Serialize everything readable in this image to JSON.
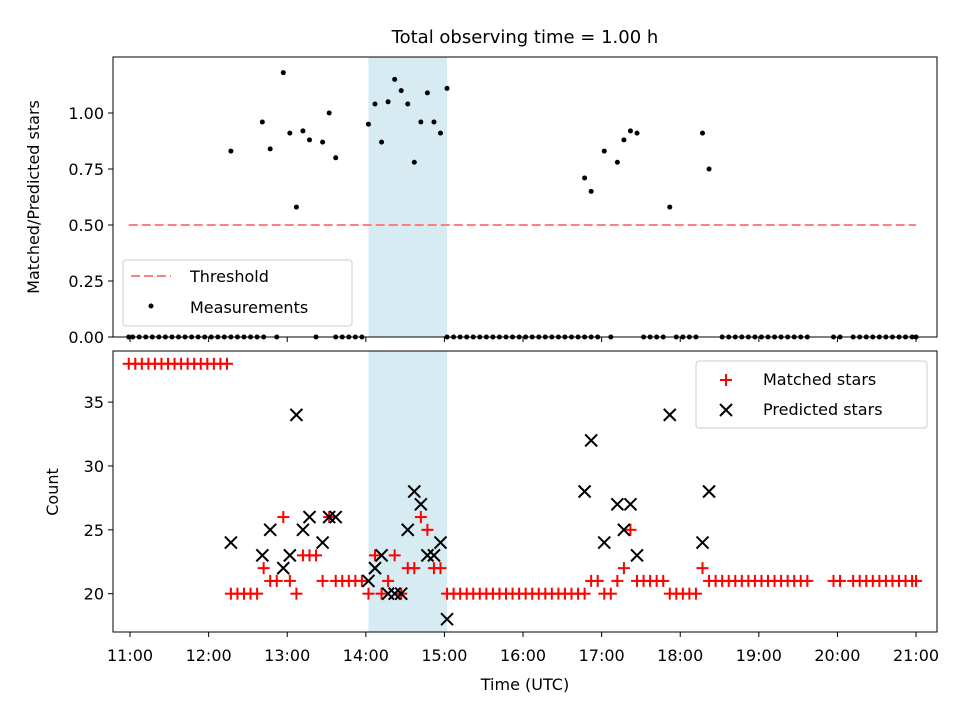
{
  "figure": {
    "title": "Total observing time = 1.00 h"
  },
  "chart_data": [
    {
      "type": "scatter",
      "panel": "top",
      "ylabel": "Matched/Predicted stars",
      "ylim": [
        0.0,
        1.25
      ],
      "xlim": [
        "10:47",
        "21:16"
      ],
      "yticks": [
        0.0,
        0.25,
        0.5,
        0.75,
        1.0
      ],
      "ytick_labels": [
        "0.00",
        "0.25",
        "0.50",
        "0.75",
        "1.00"
      ],
      "highlight": {
        "start": "14:02",
        "end": "15:02",
        "color": "#add8e6"
      },
      "legend_position": "lower-left",
      "threshold": {
        "name": "Threshold",
        "value": 0.5,
        "from": "10:59",
        "to": "21:00",
        "color": "#ff7f7f"
      },
      "series": [
        {
          "name": "Measurements",
          "color": "#000000",
          "points": [
            [
              "12:17",
              0.83
            ],
            [
              "12:41",
              0.96
            ],
            [
              "12:47",
              0.84
            ],
            [
              "12:57",
              1.18
            ],
            [
              "13:02",
              0.91
            ],
            [
              "13:07",
              0.58
            ],
            [
              "13:12",
              0.92
            ],
            [
              "13:17",
              0.88
            ],
            [
              "13:27",
              0.87
            ],
            [
              "13:32",
              1.0
            ],
            [
              "13:37",
              0.8
            ],
            [
              "14:02",
              0.95
            ],
            [
              "14:07",
              1.04
            ],
            [
              "14:12",
              0.87
            ],
            [
              "14:17",
              1.05
            ],
            [
              "14:22",
              1.15
            ],
            [
              "14:27",
              1.1
            ],
            [
              "14:32",
              1.04
            ],
            [
              "14:37",
              0.78
            ],
            [
              "14:42",
              0.96
            ],
            [
              "14:47",
              1.09
            ],
            [
              "14:52",
              0.96
            ],
            [
              "14:57",
              0.91
            ],
            [
              "15:02",
              1.11
            ],
            [
              "16:47",
              0.71
            ],
            [
              "16:52",
              0.65
            ],
            [
              "17:02",
              0.83
            ],
            [
              "17:12",
              0.78
            ],
            [
              "17:17",
              0.88
            ],
            [
              "17:22",
              0.92
            ],
            [
              "17:27",
              0.91
            ],
            [
              "17:52",
              0.58
            ],
            [
              "18:17",
              0.91
            ],
            [
              "18:22",
              0.75
            ]
          ],
          "zero_points": [
            "10:59",
            "11:02",
            "11:07",
            "11:12",
            "11:17",
            "11:22",
            "11:27",
            "11:32",
            "11:37",
            "11:42",
            "11:47",
            "11:52",
            "11:57",
            "12:02",
            "12:07",
            "12:12",
            "12:17",
            "12:22",
            "12:27",
            "12:32",
            "12:37",
            "12:42",
            "12:52",
            "13:22",
            "13:37",
            "13:42",
            "13:47",
            "13:52",
            "13:57",
            "15:02",
            "15:07",
            "15:12",
            "15:17",
            "15:22",
            "15:27",
            "15:32",
            "15:37",
            "15:42",
            "15:47",
            "15:52",
            "15:57",
            "16:02",
            "16:07",
            "16:12",
            "16:17",
            "16:22",
            "16:27",
            "16:32",
            "16:37",
            "16:42",
            "16:47",
            "16:52",
            "16:57",
            "17:07",
            "17:32",
            "17:37",
            "17:42",
            "17:47",
            "17:57",
            "18:02",
            "18:07",
            "18:12",
            "18:32",
            "18:37",
            "18:42",
            "18:47",
            "18:52",
            "18:57",
            "19:02",
            "19:07",
            "19:12",
            "19:17",
            "19:22",
            "19:27",
            "19:32",
            "19:37",
            "19:57",
            "20:02",
            "20:12",
            "20:17",
            "20:22",
            "20:27",
            "20:32",
            "20:37",
            "20:42",
            "20:47",
            "20:52",
            "20:57",
            "21:00"
          ]
        }
      ]
    },
    {
      "type": "scatter",
      "panel": "bottom",
      "xlabel": "Time (UTC)",
      "ylabel": "Count",
      "ylim": [
        17,
        39
      ],
      "xlim": [
        "10:47",
        "21:16"
      ],
      "yticks": [
        20,
        25,
        30,
        35
      ],
      "xticks": [
        "11:00",
        "12:00",
        "13:00",
        "14:00",
        "15:00",
        "16:00",
        "17:00",
        "18:00",
        "19:00",
        "20:00",
        "21:00"
      ],
      "highlight": {
        "start": "14:02",
        "end": "15:02",
        "color": "#add8e6"
      },
      "legend_position": "upper-right",
      "series": [
        {
          "name": "Matched stars",
          "marker": "plus",
          "color": "#ff0000",
          "points": [
            [
              "10:59",
              38
            ],
            [
              "11:04",
              38
            ],
            [
              "11:09",
              38
            ],
            [
              "11:14",
              38
            ],
            [
              "11:19",
              38
            ],
            [
              "11:24",
              38
            ],
            [
              "11:29",
              38
            ],
            [
              "11:34",
              38
            ],
            [
              "11:39",
              38
            ],
            [
              "11:44",
              38
            ],
            [
              "11:49",
              38
            ],
            [
              "11:54",
              38
            ],
            [
              "11:59",
              38
            ],
            [
              "12:04",
              38
            ],
            [
              "12:09",
              38
            ],
            [
              "12:14",
              38
            ],
            [
              "12:17",
              20
            ],
            [
              "12:22",
              20
            ],
            [
              "12:27",
              20
            ],
            [
              "12:32",
              20
            ],
            [
              "12:37",
              20
            ],
            [
              "12:42",
              22
            ],
            [
              "12:47",
              21
            ],
            [
              "12:52",
              21
            ],
            [
              "12:57",
              26
            ],
            [
              "13:02",
              21
            ],
            [
              "13:07",
              20
            ],
            [
              "13:12",
              23
            ],
            [
              "13:17",
              23
            ],
            [
              "13:22",
              23
            ],
            [
              "13:27",
              21
            ],
            [
              "13:32",
              26
            ],
            [
              "13:37",
              21
            ],
            [
              "13:42",
              21
            ],
            [
              "13:47",
              21
            ],
            [
              "13:52",
              21
            ],
            [
              "13:57",
              21
            ],
            [
              "14:02",
              20
            ],
            [
              "14:07",
              23
            ],
            [
              "14:12",
              20
            ],
            [
              "14:17",
              21
            ],
            [
              "14:22",
              23
            ],
            [
              "14:27",
              20
            ],
            [
              "14:32",
              22
            ],
            [
              "14:37",
              22
            ],
            [
              "14:42",
              26
            ],
            [
              "14:47",
              25
            ],
            [
              "14:52",
              22
            ],
            [
              "14:57",
              22
            ],
            [
              "15:02",
              20
            ],
            [
              "15:07",
              20
            ],
            [
              "15:12",
              20
            ],
            [
              "15:17",
              20
            ],
            [
              "15:22",
              20
            ],
            [
              "15:27",
              20
            ],
            [
              "15:32",
              20
            ],
            [
              "15:37",
              20
            ],
            [
              "15:42",
              20
            ],
            [
              "15:47",
              20
            ],
            [
              "15:52",
              20
            ],
            [
              "15:57",
              20
            ],
            [
              "16:02",
              20
            ],
            [
              "16:07",
              20
            ],
            [
              "16:12",
              20
            ],
            [
              "16:17",
              20
            ],
            [
              "16:22",
              20
            ],
            [
              "16:27",
              20
            ],
            [
              "16:32",
              20
            ],
            [
              "16:37",
              20
            ],
            [
              "16:42",
              20
            ],
            [
              "16:47",
              20
            ],
            [
              "16:52",
              21
            ],
            [
              "16:57",
              21
            ],
            [
              "17:02",
              20
            ],
            [
              "17:07",
              20
            ],
            [
              "17:12",
              21
            ],
            [
              "17:17",
              22
            ],
            [
              "17:22",
              25
            ],
            [
              "17:27",
              21
            ],
            [
              "17:32",
              21
            ],
            [
              "17:37",
              21
            ],
            [
              "17:42",
              21
            ],
            [
              "17:47",
              21
            ],
            [
              "17:52",
              20
            ],
            [
              "17:57",
              20
            ],
            [
              "18:02",
              20
            ],
            [
              "18:07",
              20
            ],
            [
              "18:12",
              20
            ],
            [
              "18:17",
              22
            ],
            [
              "18:22",
              21
            ],
            [
              "18:27",
              21
            ],
            [
              "18:32",
              21
            ],
            [
              "18:37",
              21
            ],
            [
              "18:42",
              21
            ],
            [
              "18:47",
              21
            ],
            [
              "18:52",
              21
            ],
            [
              "18:57",
              21
            ],
            [
              "19:02",
              21
            ],
            [
              "19:07",
              21
            ],
            [
              "19:12",
              21
            ],
            [
              "19:17",
              21
            ],
            [
              "19:22",
              21
            ],
            [
              "19:27",
              21
            ],
            [
              "19:32",
              21
            ],
            [
              "19:37",
              21
            ],
            [
              "19:57",
              21
            ],
            [
              "20:02",
              21
            ],
            [
              "20:12",
              21
            ],
            [
              "20:17",
              21
            ],
            [
              "20:22",
              21
            ],
            [
              "20:27",
              21
            ],
            [
              "20:32",
              21
            ],
            [
              "20:37",
              21
            ],
            [
              "20:42",
              21
            ],
            [
              "20:47",
              21
            ],
            [
              "20:52",
              21
            ],
            [
              "20:57",
              21
            ],
            [
              "21:00",
              21
            ]
          ]
        },
        {
          "name": "Predicted stars",
          "marker": "x",
          "color": "#000000",
          "points": [
            [
              "12:17",
              24
            ],
            [
              "12:41",
              23
            ],
            [
              "12:47",
              25
            ],
            [
              "12:57",
              22
            ],
            [
              "13:02",
              23
            ],
            [
              "13:07",
              34
            ],
            [
              "13:12",
              25
            ],
            [
              "13:17",
              26
            ],
            [
              "13:27",
              24
            ],
            [
              "13:32",
              26
            ],
            [
              "13:37",
              26
            ],
            [
              "14:02",
              21
            ],
            [
              "14:07",
              22
            ],
            [
              "14:12",
              23
            ],
            [
              "14:17",
              20
            ],
            [
              "14:22",
              20
            ],
            [
              "14:27",
              20
            ],
            [
              "14:32",
              25
            ],
            [
              "14:37",
              28
            ],
            [
              "14:42",
              27
            ],
            [
              "14:47",
              23
            ],
            [
              "14:52",
              23
            ],
            [
              "14:57",
              24
            ],
            [
              "15:02",
              18
            ],
            [
              "16:47",
              28
            ],
            [
              "16:52",
              32
            ],
            [
              "17:02",
              24
            ],
            [
              "17:12",
              27
            ],
            [
              "17:17",
              25
            ],
            [
              "17:22",
              27
            ],
            [
              "17:27",
              23
            ],
            [
              "17:52",
              34
            ],
            [
              "18:17",
              24
            ],
            [
              "18:22",
              28
            ]
          ]
        }
      ]
    }
  ]
}
